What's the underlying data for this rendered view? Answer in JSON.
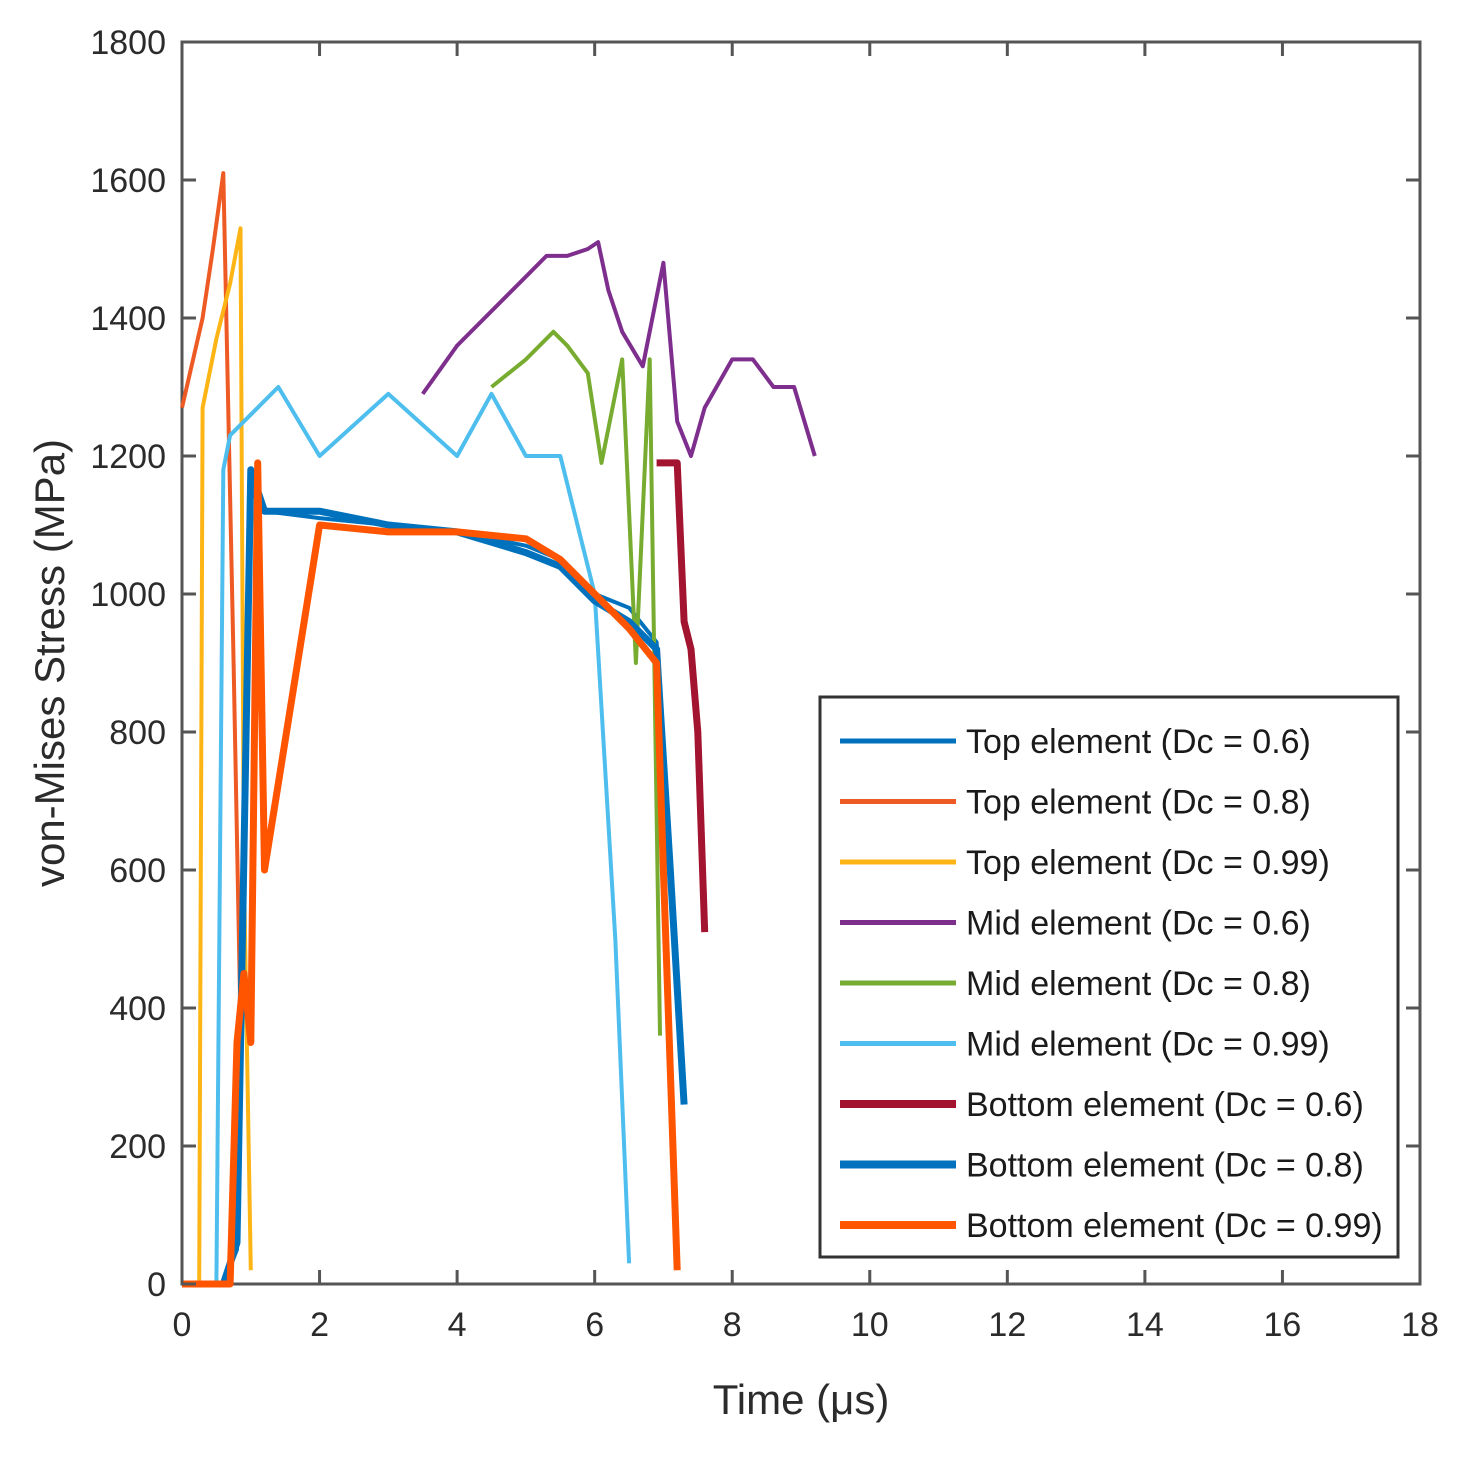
{
  "chart_data": {
    "type": "line",
    "title": "",
    "xlabel": "Time (μs)",
    "ylabel": "von-Mises Stress (MPa)",
    "xlim": [
      0,
      18
    ],
    "ylim": [
      0,
      1800
    ],
    "xticks": [
      0,
      2,
      4,
      6,
      8,
      10,
      12,
      14,
      16,
      18
    ],
    "yticks": [
      0,
      200,
      400,
      600,
      800,
      1000,
      1200,
      1400,
      1600,
      1800
    ],
    "grid": false,
    "legend_position": "bottom-right",
    "series": [
      {
        "name": "Top element (Dc = 0.6)",
        "color": "#0072BD",
        "thick": false,
        "x": [
          0,
          0.6,
          0.8,
          1.0,
          1.2,
          2.0,
          3.0,
          4.0,
          5.0,
          5.5,
          6.0,
          6.5,
          6.9,
          7.1,
          7.3
        ],
        "y": [
          0,
          0,
          50,
          1150,
          1120,
          1110,
          1100,
          1090,
          1070,
          1050,
          1000,
          980,
          930,
          600,
          270
        ]
      },
      {
        "name": "Top element (Dc = 0.8)",
        "color": "#EE5A24",
        "thick": false,
        "x": [
          0,
          0.3,
          0.45,
          0.6,
          0.75,
          0.85
        ],
        "y": [
          1270,
          1400,
          1500,
          1610,
          900,
          380
        ]
      },
      {
        "name": "Top element (Dc = 0.99)",
        "color": "#FDB515",
        "thick": false,
        "x": [
          0,
          0.25,
          0.3,
          0.5,
          0.7,
          0.85,
          0.9,
          1.0
        ],
        "y": [
          0,
          0,
          1270,
          1370,
          1450,
          1530,
          600,
          20
        ]
      },
      {
        "name": "Mid element (Dc = 0.6)",
        "color": "#7E2F8E",
        "thick": false,
        "x": [
          3.5,
          4.0,
          4.5,
          5.0,
          5.3,
          5.6,
          5.9,
          6.05,
          6.2,
          6.4,
          6.7,
          7.0,
          7.2,
          7.4,
          7.6,
          8.0,
          8.3,
          8.6,
          8.9,
          9.2
        ],
        "y": [
          1290,
          1360,
          1410,
          1460,
          1490,
          1490,
          1500,
          1510,
          1440,
          1380,
          1330,
          1480,
          1250,
          1200,
          1270,
          1340,
          1340,
          1300,
          1300,
          1200
        ]
      },
      {
        "name": "Mid element (Dc = 0.8)",
        "color": "#77AC30",
        "thick": false,
        "x": [
          4.5,
          5.0,
          5.4,
          5.6,
          5.9,
          6.1,
          6.4,
          6.6,
          6.8,
          6.95
        ],
        "y": [
          1300,
          1340,
          1380,
          1360,
          1320,
          1190,
          1340,
          900,
          1340,
          360
        ]
      },
      {
        "name": "Mid element (Dc = 0.99)",
        "color": "#4DBEEE",
        "thick": false,
        "x": [
          0.35,
          0.5,
          0.6,
          0.7,
          1.0,
          1.4,
          2.0,
          3.0,
          4.0,
          4.5,
          5.0,
          5.5,
          6.0,
          6.3,
          6.5
        ],
        "y": [
          0,
          0,
          1180,
          1230,
          1260,
          1300,
          1200,
          1290,
          1200,
          1290,
          1200,
          1200,
          1000,
          500,
          30
        ]
      },
      {
        "name": "Bottom element (Dc = 0.6)",
        "color": "#A2142F",
        "thick": true,
        "x": [
          6.9,
          7.0,
          7.2,
          7.3,
          7.4,
          7.5,
          7.6
        ],
        "y": [
          1190,
          1190,
          1190,
          960,
          920,
          800,
          510
        ]
      },
      {
        "name": "Bottom element (Dc = 0.8)",
        "color": "#0072BD",
        "thick": true,
        "x": [
          0,
          0.6,
          0.8,
          1.0,
          1.2,
          2.0,
          3.0,
          4.0,
          5.0,
          5.5,
          6.0,
          6.5,
          6.9,
          7.1,
          7.3
        ],
        "y": [
          0,
          0,
          60,
          1180,
          1120,
          1120,
          1100,
          1090,
          1060,
          1040,
          990,
          960,
          920,
          600,
          260
        ]
      },
      {
        "name": "Bottom element (Dc = 0.99)",
        "color": "#FF5500",
        "thick": true,
        "x": [
          0,
          0.7,
          0.8,
          0.9,
          1.0,
          1.1,
          1.2,
          2.0,
          3.0,
          4.0,
          5.0,
          5.5,
          6.0,
          6.5,
          6.9,
          7.0,
          7.2
        ],
        "y": [
          0,
          0,
          350,
          450,
          350,
          1190,
          600,
          1100,
          1090,
          1090,
          1080,
          1050,
          1000,
          950,
          900,
          600,
          20
        ]
      }
    ]
  }
}
